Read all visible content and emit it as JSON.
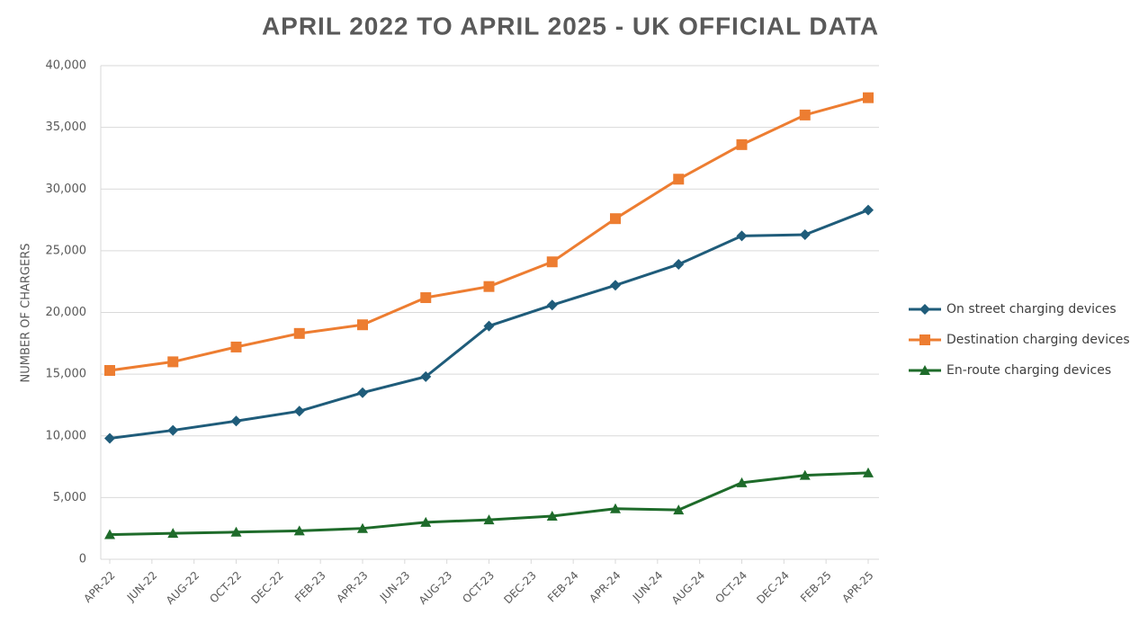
{
  "chart_data": {
    "type": "line",
    "title": "APRIL 2022 TO APRIL 2025 - UK OFFICIAL DATA",
    "y_label": "NUMBER OF CHARGERS",
    "x": [
      "2022-04",
      "2022-07",
      "2022-10",
      "2023-01",
      "2023-04",
      "2023-07",
      "2023-10",
      "2024-01",
      "2024-04",
      "2024-07",
      "2024-10",
      "2025-01",
      "2025-04"
    ],
    "xlim": [
      "2022-04",
      "2025-04"
    ],
    "xticks": [
      {
        "value": "2022-04",
        "label": "APR-22"
      },
      {
        "value": "2022-06",
        "label": "JUN-22"
      },
      {
        "value": "2022-08",
        "label": "AUG-22"
      },
      {
        "value": "2022-10",
        "label": "OCT-22"
      },
      {
        "value": "2022-12",
        "label": "DEC-22"
      },
      {
        "value": "2023-02",
        "label": "FEB-23"
      },
      {
        "value": "2023-04",
        "label": "APR-23"
      },
      {
        "value": "2023-06",
        "label": "JUN-23"
      },
      {
        "value": "2023-08",
        "label": "AUG-23"
      },
      {
        "value": "2023-10",
        "label": "OCT-23"
      },
      {
        "value": "2023-12",
        "label": "DEC-23"
      },
      {
        "value": "2024-02",
        "label": "FEB-24"
      },
      {
        "value": "2024-04",
        "label": "APR-24"
      },
      {
        "value": "2024-06",
        "label": "JUN-24"
      },
      {
        "value": "2024-08",
        "label": "AUG-24"
      },
      {
        "value": "2024-10",
        "label": "OCT-24"
      },
      {
        "value": "2024-12",
        "label": "DEC-24"
      },
      {
        "value": "2025-02",
        "label": "FEB-25"
      },
      {
        "value": "2025-04",
        "label": "APR-25"
      }
    ],
    "ylim": [
      0,
      40000
    ],
    "yticks": [
      0,
      {
        "value": 5000,
        "label": "5,000"
      },
      {
        "value": 10000,
        "label": "10,000"
      },
      {
        "value": 15000,
        "label": "15,000"
      },
      {
        "value": 20000,
        "label": "20,000"
      },
      {
        "value": 25000,
        "label": "25,000"
      },
      {
        "value": 30000,
        "label": "30,000"
      },
      {
        "value": 35000,
        "label": "35,000"
      },
      {
        "value": 40000,
        "label": "40,000"
      }
    ],
    "grid": true,
    "legend": "right",
    "series": [
      {
        "name": "On street charging devices",
        "color": "#1f5c7a",
        "marker": "diamond",
        "values": [
          9800,
          10450,
          11200,
          12000,
          13500,
          14800,
          18900,
          20600,
          22200,
          23900,
          26200,
          26300,
          28300
        ]
      },
      {
        "name": "Destination charging devices",
        "color": "#ed7d31",
        "marker": "square",
        "values": [
          15300,
          16000,
          17200,
          18300,
          19000,
          21200,
          22100,
          24100,
          27600,
          30800,
          33600,
          36000,
          37400
        ]
      },
      {
        "name": "En-route charging devices",
        "color": "#1e6b2a",
        "marker": "triangle",
        "values": [
          2000,
          2100,
          2200,
          2300,
          2500,
          3000,
          3200,
          3500,
          4100,
          4000,
          6200,
          6800,
          7000
        ]
      }
    ]
  }
}
